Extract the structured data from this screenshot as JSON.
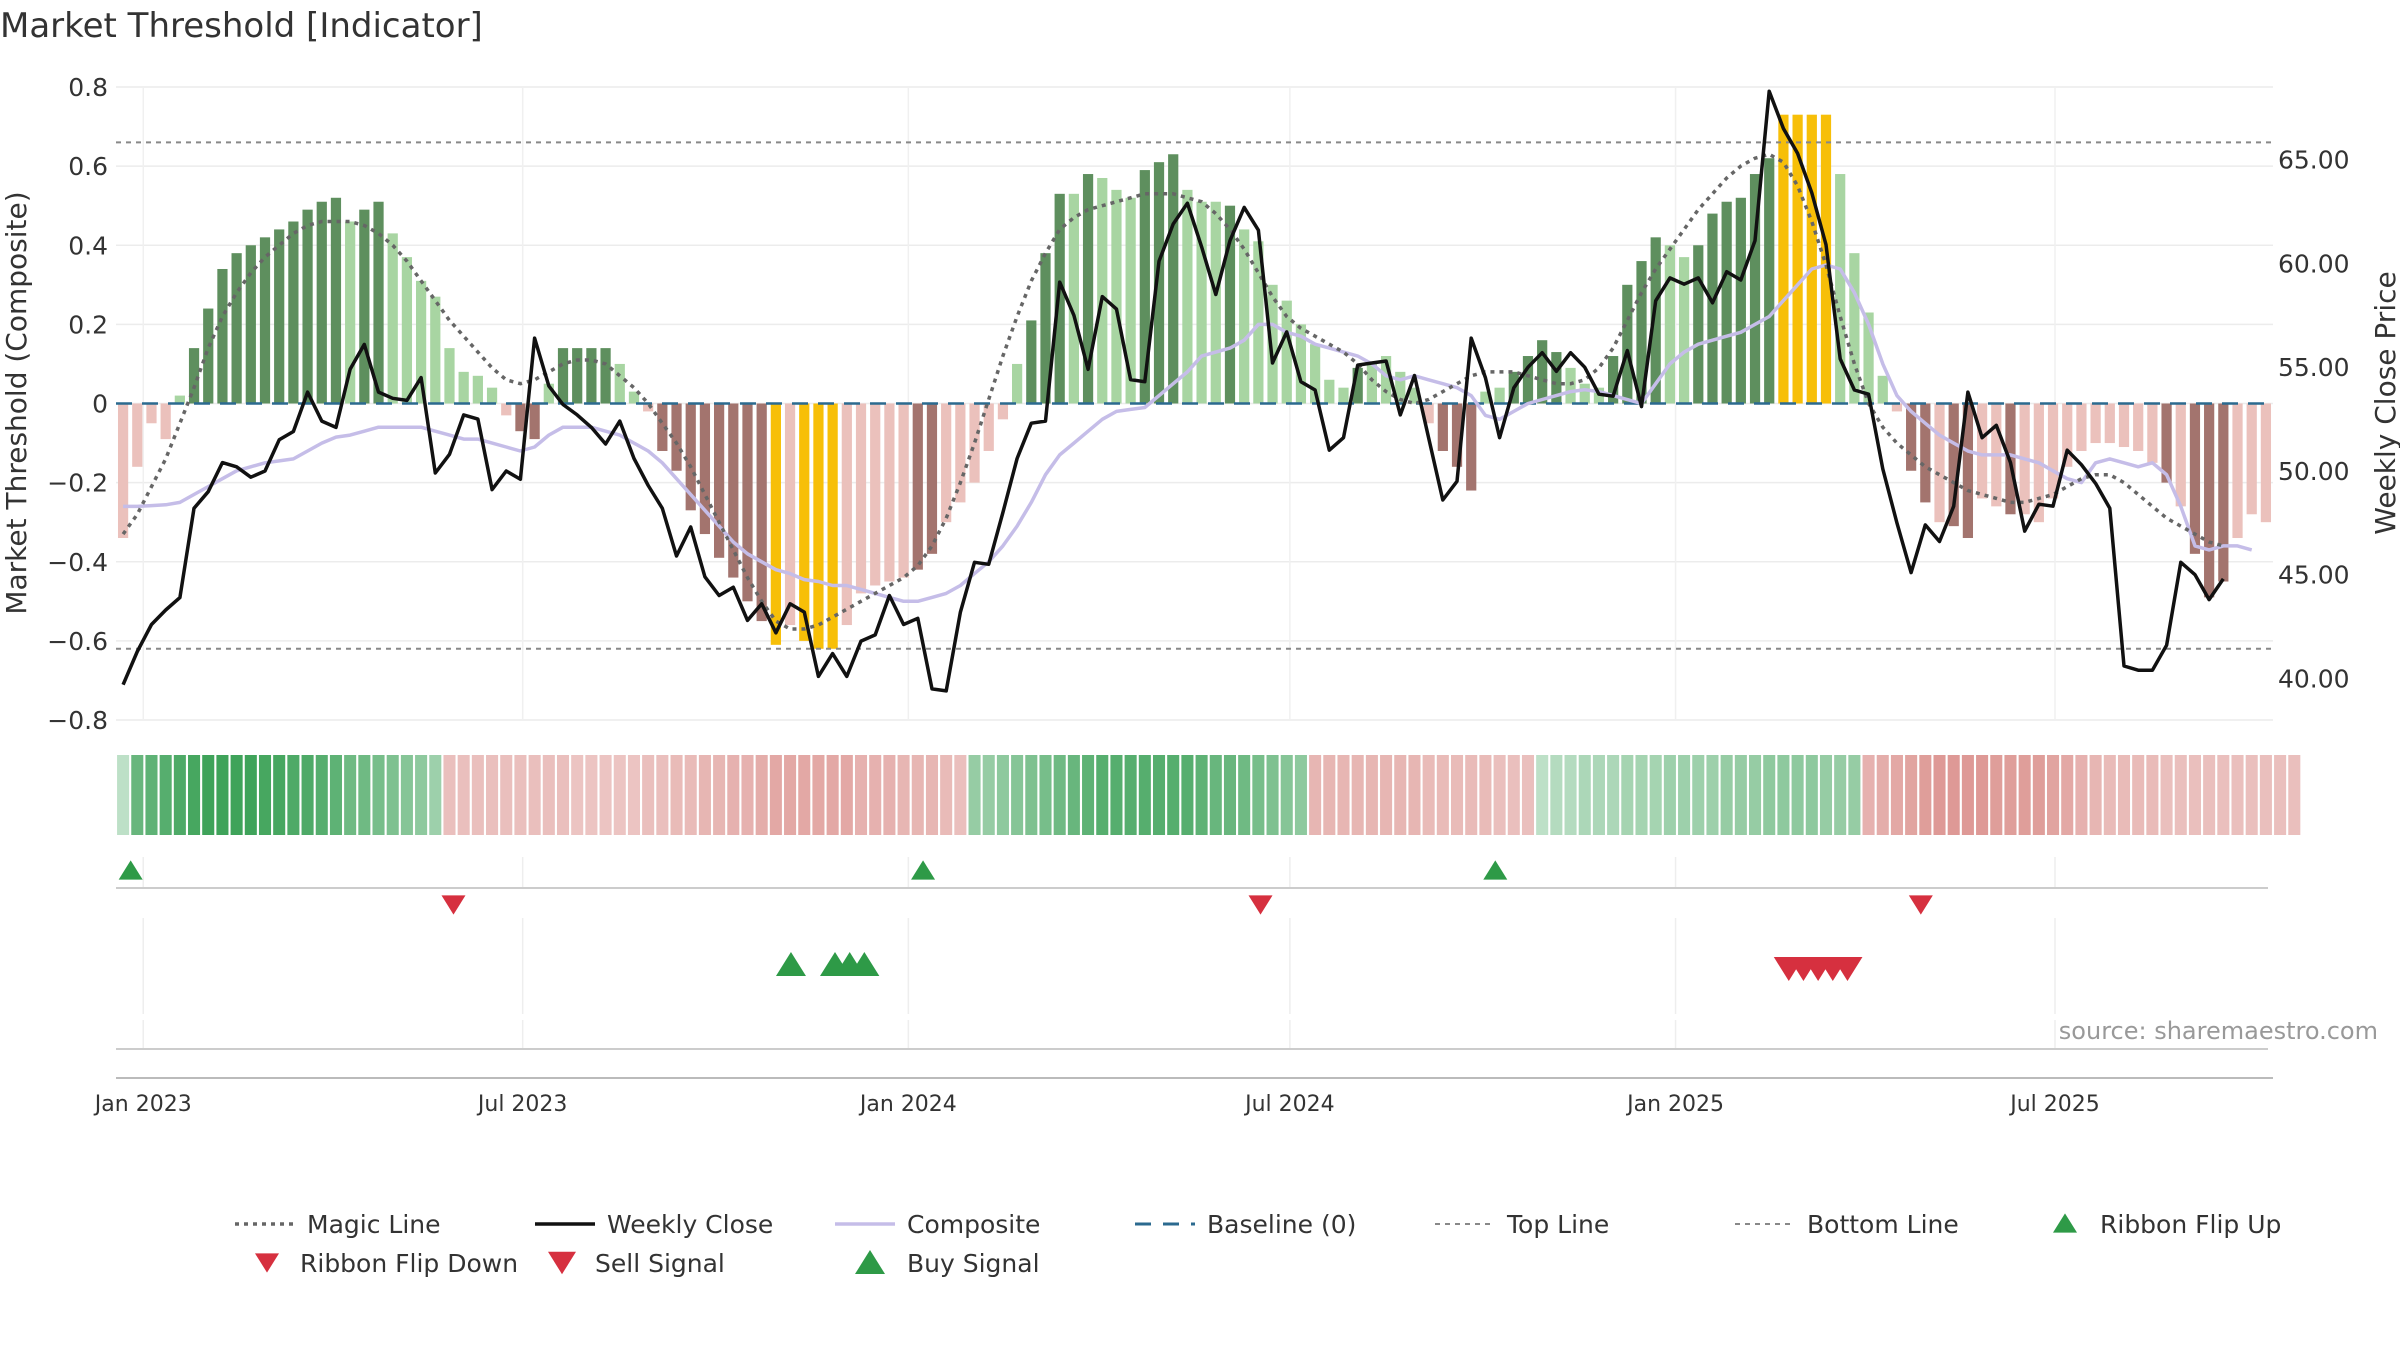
{
  "title": "Market Threshold [Indicator]",
  "source": "source: sharemaestro.com",
  "colors": {
    "strong_up": "#5e8f5e",
    "weak_up": "#a8d5a2",
    "strong_down": "#a3746e",
    "weak_down": "#ebc1bc",
    "extreme": "#f7bf08",
    "weekly_close": "#111111",
    "composite": "#c5bde8",
    "magic_line": "#666666",
    "baseline": "#2b6a8f",
    "threshold_line": "#888888",
    "buy": "#2e9a47",
    "sell": "#d6303f",
    "ribbon_green": "#3fa35a",
    "ribbon_red": "#d98b87"
  },
  "chart_data": {
    "type": "bar",
    "x_labels": [
      "Jan 2023",
      "Jul 2023",
      "Jan 2024",
      "Jul 2024",
      "Jan 2025",
      "Jul 2025"
    ],
    "x_range": [
      "2022-12-19",
      "2025-10-13"
    ],
    "left_axis": {
      "label": "Market Threshold (Composite)",
      "ylim": [
        -0.8,
        0.8
      ],
      "ticks": [
        "0.8",
        "0.6",
        "0.4",
        "0.2",
        "0",
        "−0.2",
        "−0.4",
        "−0.6",
        "−0.8"
      ]
    },
    "right_axis": {
      "label": "Weekly Close Price",
      "ylim": [
        38.0,
        68.5
      ],
      "ticks": [
        "65.00",
        "60.00",
        "55.00",
        "50.00",
        "45.00",
        "40.00"
      ]
    },
    "top_line": 0.66,
    "bottom_line": -0.62,
    "bars": [
      -0.34,
      -0.16,
      -0.05,
      -0.09,
      0.02,
      0.14,
      0.24,
      0.34,
      0.38,
      0.4,
      0.42,
      0.44,
      0.46,
      0.49,
      0.51,
      0.52,
      0.46,
      0.49,
      0.51,
      0.43,
      0.37,
      0.31,
      0.27,
      0.14,
      0.08,
      0.07,
      0.04,
      -0.03,
      -0.07,
      -0.09,
      0.05,
      0.14,
      0.14,
      0.14,
      0.14,
      0.1,
      0.03,
      -0.02,
      -0.12,
      -0.17,
      -0.27,
      -0.33,
      -0.39,
      -0.44,
      -0.5,
      -0.55,
      -0.61,
      -0.56,
      -0.6,
      -0.62,
      -0.62,
      -0.56,
      -0.48,
      -0.46,
      -0.45,
      -0.44,
      -0.42,
      -0.38,
      -0.3,
      -0.25,
      -0.2,
      -0.12,
      -0.04,
      0.1,
      0.21,
      0.38,
      0.53,
      0.53,
      0.58,
      0.57,
      0.54,
      0.52,
      0.59,
      0.61,
      0.63,
      0.54,
      0.51,
      0.51,
      0.5,
      0.44,
      0.41,
      0.3,
      0.26,
      0.2,
      0.15,
      0.06,
      0.04,
      0.09,
      0.1,
      0.12,
      0.08,
      0.04,
      -0.05,
      -0.12,
      -0.16,
      -0.22,
      0.03,
      0.04,
      0.08,
      0.12,
      0.16,
      0.13,
      0.09,
      0.05,
      0.04,
      0.12,
      0.3,
      0.36,
      0.42,
      0.4,
      0.37,
      0.4,
      0.48,
      0.51,
      0.52,
      0.58,
      0.62,
      0.73,
      0.73,
      0.73,
      0.73,
      0.58,
      0.38,
      0.23,
      0.07,
      -0.02,
      -0.17,
      -0.25,
      -0.3,
      -0.31,
      -0.34,
      -0.24,
      -0.26,
      -0.28,
      -0.28,
      -0.3,
      -0.24,
      -0.16,
      -0.12,
      -0.1,
      -0.1,
      -0.11,
      -0.12,
      -0.15,
      -0.2,
      -0.26,
      -0.38,
      -0.49,
      -0.45,
      -0.34,
      -0.28,
      -0.3
    ],
    "bar_categories": [
      "weak_down",
      "weak_down",
      "weak_down",
      "weak_down",
      "weak_up",
      "strong_up",
      "strong_up",
      "strong_up",
      "strong_up",
      "strong_up",
      "strong_up",
      "strong_up",
      "strong_up",
      "strong_up",
      "strong_up",
      "strong_up",
      "weak_up",
      "strong_up",
      "strong_up",
      "weak_up",
      "weak_up",
      "weak_up",
      "weak_up",
      "weak_up",
      "weak_up",
      "weak_up",
      "weak_up",
      "weak_down",
      "strong_down",
      "strong_down",
      "weak_up",
      "strong_up",
      "strong_up",
      "strong_up",
      "strong_up",
      "weak_up",
      "weak_up",
      "weak_down",
      "strong_down",
      "strong_down",
      "strong_down",
      "strong_down",
      "strong_down",
      "strong_down",
      "strong_down",
      "strong_down",
      "extreme",
      "weak_down",
      "extreme",
      "extreme",
      "extreme",
      "weak_down",
      "weak_down",
      "weak_down",
      "weak_down",
      "weak_down",
      "strong_down",
      "strong_down",
      "weak_down",
      "weak_down",
      "weak_down",
      "weak_down",
      "weak_down",
      "weak_up",
      "strong_up",
      "strong_up",
      "strong_up",
      "weak_up",
      "strong_up",
      "weak_up",
      "weak_up",
      "weak_up",
      "strong_up",
      "strong_up",
      "strong_up",
      "weak_up",
      "weak_up",
      "weak_up",
      "strong_up",
      "weak_up",
      "weak_up",
      "weak_up",
      "weak_up",
      "weak_up",
      "weak_up",
      "weak_up",
      "weak_up",
      "strong_up",
      "weak_up",
      "weak_up",
      "weak_up",
      "weak_up",
      "weak_down",
      "strong_down",
      "strong_down",
      "strong_down",
      "weak_up",
      "weak_up",
      "strong_up",
      "strong_up",
      "strong_up",
      "strong_up",
      "weak_up",
      "weak_up",
      "weak_up",
      "strong_up",
      "strong_up",
      "strong_up",
      "strong_up",
      "weak_up",
      "weak_up",
      "strong_up",
      "strong_up",
      "strong_up",
      "strong_up",
      "strong_up",
      "strong_up",
      "extreme",
      "extreme",
      "extreme",
      "extreme",
      "weak_up",
      "weak_up",
      "weak_up",
      "weak_up",
      "weak_down",
      "strong_down",
      "strong_down",
      "weak_down",
      "strong_down",
      "strong_down",
      "weak_down",
      "weak_down",
      "strong_down",
      "weak_down",
      "weak_down",
      "weak_down",
      "weak_down",
      "weak_down",
      "weak_down",
      "weak_down",
      "weak_down",
      "weak_down",
      "weak_down",
      "strong_down",
      "weak_down",
      "strong_down",
      "strong_down",
      "strong_down",
      "weak_down",
      "weak_down",
      "weak_down"
    ],
    "series": [
      {
        "name": "Magic Line",
        "values": [
          -0.33,
          -0.28,
          -0.21,
          -0.14,
          -0.05,
          0.04,
          0.14,
          0.22,
          0.28,
          0.33,
          0.37,
          0.4,
          0.43,
          0.45,
          0.46,
          0.46,
          0.46,
          0.45,
          0.43,
          0.4,
          0.36,
          0.31,
          0.26,
          0.21,
          0.17,
          0.13,
          0.09,
          0.06,
          0.05,
          0.06,
          0.08,
          0.1,
          0.11,
          0.11,
          0.1,
          0.07,
          0.04,
          0.0,
          -0.05,
          -0.1,
          -0.16,
          -0.23,
          -0.3,
          -0.37,
          -0.44,
          -0.5,
          -0.55,
          -0.57,
          -0.57,
          -0.56,
          -0.54,
          -0.52,
          -0.5,
          -0.48,
          -0.46,
          -0.44,
          -0.41,
          -0.36,
          -0.29,
          -0.2,
          -0.1,
          0.01,
          0.12,
          0.22,
          0.31,
          0.38,
          0.44,
          0.47,
          0.49,
          0.5,
          0.51,
          0.52,
          0.53,
          0.53,
          0.53,
          0.52,
          0.51,
          0.48,
          0.44,
          0.39,
          0.33,
          0.27,
          0.22,
          0.19,
          0.17,
          0.15,
          0.13,
          0.1,
          0.06,
          0.03,
          0.01,
          0.0,
          0.01,
          0.03,
          0.05,
          0.07,
          0.08,
          0.08,
          0.08,
          0.07,
          0.06,
          0.05,
          0.05,
          0.06,
          0.09,
          0.14,
          0.21,
          0.28,
          0.34,
          0.39,
          0.44,
          0.49,
          0.53,
          0.57,
          0.6,
          0.62,
          0.63,
          0.61,
          0.55,
          0.46,
          0.35,
          0.22,
          0.1,
          0.0,
          -0.06,
          -0.1,
          -0.13,
          -0.16,
          -0.18,
          -0.2,
          -0.22,
          -0.23,
          -0.24,
          -0.25,
          -0.25,
          -0.24,
          -0.23,
          -0.21,
          -0.19,
          -0.18,
          -0.18,
          -0.2,
          -0.23,
          -0.26,
          -0.29,
          -0.31,
          -0.33,
          -0.35,
          -0.36
        ]
      },
      {
        "name": "Weekly Close",
        "values": [
          39.7,
          41.3,
          42.6,
          43.3,
          43.9,
          48.2,
          49.0,
          50.4,
          50.2,
          49.7,
          50.0,
          51.5,
          51.9,
          53.8,
          52.4,
          52.1,
          54.9,
          56.1,
          53.8,
          53.5,
          53.4,
          54.5,
          49.9,
          50.8,
          52.7,
          52.5,
          49.1,
          50.0,
          49.6,
          56.4,
          54.1,
          53.2,
          52.7,
          52.1,
          51.3,
          52.4,
          50.6,
          49.3,
          48.2,
          45.9,
          47.3,
          44.9,
          44.0,
          44.4,
          42.8,
          43.6,
          42.2,
          43.6,
          43.2,
          40.1,
          41.2,
          40.1,
          41.8,
          42.1,
          44.0,
          42.6,
          42.9,
          39.5,
          39.4,
          43.2,
          45.6,
          45.5,
          48.0,
          50.6,
          52.3,
          52.4,
          59.1,
          57.5,
          54.9,
          58.4,
          57.8,
          54.4,
          54.3,
          60.1,
          61.9,
          62.9,
          60.8,
          58.5,
          61.1,
          62.7,
          61.6,
          55.2,
          56.7,
          54.3,
          53.9,
          51.0,
          51.6,
          55.1,
          55.2,
          55.3,
          52.7,
          54.6,
          51.6,
          48.6,
          49.5,
          56.4,
          54.5,
          51.6,
          54.0,
          55.0,
          55.7,
          54.8,
          55.7,
          55.0,
          53.7,
          53.6,
          55.8,
          53.1,
          58.2,
          59.3,
          59.0,
          59.3,
          58.1,
          59.6,
          59.2,
          61.1,
          68.3,
          66.5,
          65.3,
          63.4,
          60.9,
          55.4,
          53.9,
          53.7,
          50.1,
          47.5,
          45.1,
          47.4,
          46.6,
          48.3,
          53.8,
          51.6,
          52.2,
          50.4,
          47.1,
          48.4,
          48.3,
          51.0,
          50.3,
          49.4,
          48.2,
          40.6,
          40.4,
          40.4,
          41.6,
          45.6,
          45.0,
          43.8,
          44.8
        ]
      },
      {
        "name": "Composite",
        "values": [
          -0.26,
          -0.26,
          -0.258,
          -0.256,
          -0.25,
          -0.23,
          -0.21,
          -0.19,
          -0.17,
          -0.16,
          -0.15,
          -0.145,
          -0.14,
          -0.12,
          -0.1,
          -0.085,
          -0.08,
          -0.07,
          -0.06,
          -0.06,
          -0.06,
          -0.06,
          -0.07,
          -0.08,
          -0.09,
          -0.09,
          -0.1,
          -0.11,
          -0.12,
          -0.11,
          -0.08,
          -0.06,
          -0.06,
          -0.06,
          -0.07,
          -0.08,
          -0.1,
          -0.12,
          -0.15,
          -0.19,
          -0.23,
          -0.27,
          -0.31,
          -0.35,
          -0.38,
          -0.4,
          -0.42,
          -0.43,
          -0.445,
          -0.45,
          -0.46,
          -0.46,
          -0.47,
          -0.48,
          -0.49,
          -0.5,
          -0.5,
          -0.49,
          -0.48,
          -0.46,
          -0.43,
          -0.4,
          -0.36,
          -0.31,
          -0.25,
          -0.18,
          -0.13,
          -0.1,
          -0.07,
          -0.04,
          -0.02,
          -0.015,
          -0.01,
          0.02,
          0.05,
          0.08,
          0.12,
          0.13,
          0.14,
          0.16,
          0.2,
          0.2,
          0.18,
          0.17,
          0.15,
          0.14,
          0.13,
          0.12,
          0.1,
          0.07,
          0.06,
          0.07,
          0.06,
          0.05,
          0.04,
          0.02,
          -0.03,
          -0.04,
          -0.02,
          0.0,
          0.01,
          0.02,
          0.03,
          0.035,
          0.03,
          0.02,
          0.01,
          0.0,
          0.05,
          0.1,
          0.13,
          0.15,
          0.16,
          0.17,
          0.18,
          0.2,
          0.22,
          0.26,
          0.3,
          0.34,
          0.35,
          0.34,
          0.28,
          0.2,
          0.1,
          0.02,
          -0.02,
          -0.05,
          -0.08,
          -0.1,
          -0.12,
          -0.13,
          -0.13,
          -0.13,
          -0.14,
          -0.15,
          -0.17,
          -0.19,
          -0.2,
          -0.15,
          -0.14,
          -0.15,
          -0.16,
          -0.15,
          -0.18,
          -0.26,
          -0.36,
          -0.37,
          -0.36,
          -0.36,
          -0.37
        ]
      },
      {
        "name": "Baseline (0)",
        "value": 0
      },
      {
        "name": "Top Line",
        "value": 0.66
      },
      {
        "name": "Bottom Line",
        "value": -0.62
      }
    ],
    "ribbon": [
      0.2,
      0.75,
      0.8,
      0.85,
      0.9,
      0.95,
      1.0,
      1.0,
      1.0,
      1.0,
      0.95,
      0.95,
      0.9,
      0.9,
      0.85,
      0.8,
      0.7,
      0.7,
      0.65,
      0.6,
      0.55,
      0.5,
      0.4,
      -0.45,
      -0.45,
      -0.45,
      -0.45,
      -0.45,
      -0.45,
      -0.45,
      -0.45,
      -0.45,
      -0.4,
      -0.4,
      -0.4,
      -0.4,
      -0.4,
      -0.45,
      -0.45,
      -0.5,
      -0.5,
      -0.55,
      -0.55,
      -0.6,
      -0.6,
      -0.65,
      -0.7,
      -0.7,
      -0.7,
      -0.7,
      -0.7,
      -0.7,
      -0.6,
      -0.6,
      -0.6,
      -0.55,
      -0.55,
      -0.55,
      -0.5,
      -0.45,
      0.45,
      0.45,
      0.5,
      0.55,
      0.6,
      0.65,
      0.7,
      0.75,
      0.8,
      0.85,
      0.85,
      0.85,
      0.85,
      0.85,
      0.85,
      0.85,
      0.8,
      0.75,
      0.75,
      0.7,
      0.65,
      0.6,
      0.55,
      0.5,
      -0.55,
      -0.55,
      -0.55,
      -0.55,
      -0.55,
      -0.55,
      -0.55,
      -0.55,
      -0.5,
      -0.5,
      -0.5,
      -0.5,
      -0.5,
      -0.45,
      -0.45,
      -0.45,
      0.2,
      0.25,
      0.25,
      0.3,
      0.3,
      0.3,
      0.35,
      0.35,
      0.35,
      0.4,
      0.4,
      0.4,
      0.4,
      0.45,
      0.45,
      0.45,
      0.5,
      0.5,
      0.5,
      0.5,
      0.45,
      0.45,
      0.45,
      -0.6,
      -0.65,
      -0.7,
      -0.75,
      -0.8,
      -0.85,
      -0.85,
      -0.85,
      -0.85,
      -0.8,
      -0.8,
      -0.8,
      -0.8,
      -0.75,
      -0.7,
      -0.6,
      -0.55,
      -0.5,
      -0.5,
      -0.5,
      -0.5,
      -0.45,
      -0.45,
      -0.45,
      -0.45,
      -0.45,
      -0.45,
      -0.45,
      -0.45,
      -0.45,
      -0.45
    ],
    "ribbon_flip_up": [
      "2022-12-26",
      "2024-01-08",
      "2024-10-07"
    ],
    "ribbon_flip_down": [
      "2023-05-29",
      "2024-06-17",
      "2025-04-28"
    ],
    "buy_signals": [
      "2023-11-06",
      "2023-11-27",
      "2023-12-04",
      "2023-12-11"
    ],
    "sell_signals": [
      "2025-02-24",
      "2025-03-03",
      "2025-03-10",
      "2025-03-17",
      "2025-03-24"
    ],
    "legend": [
      {
        "name": "Magic Line",
        "style": "dotted"
      },
      {
        "name": "Weekly Close",
        "style": "solid"
      },
      {
        "name": "Composite",
        "style": "composite"
      },
      {
        "name": "Baseline (0)",
        "style": "dashed"
      },
      {
        "name": "Top Line",
        "style": "dotted-light"
      },
      {
        "name": "Bottom Line",
        "style": "dotted-light"
      },
      {
        "name": "Ribbon Flip Up",
        "style": "triangle-up"
      },
      {
        "name": "Ribbon Flip Down",
        "style": "triangle-down-dark"
      },
      {
        "name": "Sell Signal",
        "style": "triangle-down"
      },
      {
        "name": "Buy Signal",
        "style": "triangle-up-big"
      }
    ],
    "legend_placement": "bottom",
    "grid": true
  }
}
